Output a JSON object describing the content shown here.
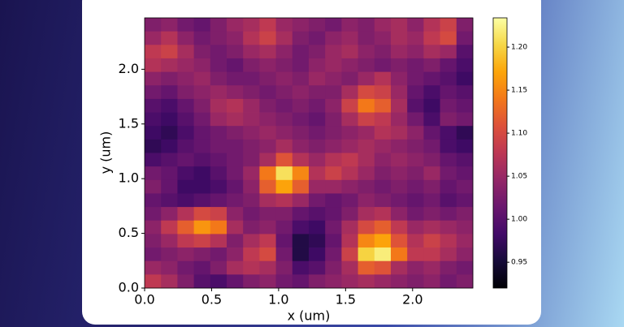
{
  "chart_data": {
    "type": "heatmap",
    "xlabel": "x (um)",
    "ylabel": "y (um)",
    "xlim": [
      0,
      2.45
    ],
    "ylim": [
      0,
      2.47
    ],
    "xticks": [
      {
        "value": 0,
        "label": "0.0"
      },
      0.5,
      {
        "value": 1,
        "label": "1.0"
      },
      1.5,
      {
        "value": 2,
        "label": "2.0"
      }
    ],
    "yticks": [
      {
        "value": 0,
        "label": "0.0"
      },
      0.5,
      {
        "value": 1,
        "label": "1.0"
      },
      1.5,
      {
        "value": 2,
        "label": "2.0"
      }
    ],
    "colormap": "inferno",
    "clim": [
      0.92,
      1.234
    ],
    "cticks": [
      0.95,
      {
        "value": 1,
        "label": "1.00"
      },
      1.05,
      {
        "value": 1.1,
        "label": "1.10"
      },
      1.15,
      {
        "value": 1.2,
        "label": "1.20"
      }
    ],
    "z": [
      [
        1.03,
        1.04,
        1.02,
        1.01,
        1.03,
        1.05,
        1.06,
        1.08,
        1.05,
        1.04,
        1.03,
        1.02,
        1.04,
        1.03,
        1.05,
        1.06,
        1.04,
        1.07,
        1.09,
        1.03
      ],
      [
        1.05,
        1.07,
        1.04,
        1.02,
        1.03,
        1.04,
        1.07,
        1.09,
        1.06,
        1.03,
        1.02,
        1.04,
        1.05,
        1.03,
        1.04,
        1.06,
        1.05,
        1.08,
        1.1,
        1.02
      ],
      [
        1.08,
        1.09,
        1.06,
        1.03,
        1.02,
        1.03,
        1.05,
        1.06,
        1.04,
        1.02,
        1.03,
        1.05,
        1.06,
        1.04,
        1.03,
        1.05,
        1.04,
        1.06,
        1.05,
        1.0
      ],
      [
        1.07,
        1.06,
        1.05,
        1.04,
        1.02,
        1.01,
        1.03,
        1.04,
        1.03,
        1.02,
        1.04,
        1.05,
        1.04,
        1.03,
        1.02,
        1.03,
        1.02,
        1.03,
        1.01,
        0.99
      ],
      [
        1.04,
        1.03,
        1.04,
        1.05,
        1.03,
        1.02,
        1.02,
        1.03,
        1.04,
        1.03,
        1.05,
        1.04,
        1.03,
        1.05,
        1.07,
        1.04,
        1.02,
        1.01,
        1.0,
        0.98
      ],
      [
        1.02,
        1.01,
        1.03,
        1.04,
        1.05,
        1.04,
        1.03,
        1.02,
        1.03,
        1.04,
        1.03,
        1.03,
        1.06,
        1.1,
        1.09,
        1.05,
        1.01,
        0.99,
        1.01,
        1.0
      ],
      [
        1.0,
        0.99,
        1.01,
        1.03,
        1.06,
        1.07,
        1.05,
        1.03,
        1.02,
        1.03,
        1.02,
        1.04,
        1.09,
        1.14,
        1.12,
        1.06,
        1.0,
        0.98,
        1.02,
        1.01
      ],
      [
        0.99,
        0.98,
        1.0,
        1.02,
        1.05,
        1.06,
        1.05,
        1.04,
        1.03,
        1.02,
        1.01,
        1.03,
        1.06,
        1.09,
        1.08,
        1.05,
        1.02,
        0.99,
        1.03,
        1.02
      ],
      [
        0.98,
        0.97,
        0.99,
        1.01,
        1.02,
        1.03,
        1.04,
        1.05,
        1.04,
        1.03,
        1.02,
        1.03,
        1.04,
        1.05,
        1.07,
        1.06,
        1.04,
        1.01,
        0.99,
        0.97
      ],
      [
        0.97,
        0.98,
        1.0,
        1.01,
        1.02,
        1.02,
        1.03,
        1.04,
        1.06,
        1.04,
        1.03,
        1.04,
        1.05,
        1.06,
        1.05,
        1.04,
        1.03,
        1.02,
        0.99,
        0.98
      ],
      [
        0.99,
        1.0,
        1.01,
        1.0,
        1.01,
        1.02,
        1.03,
        1.06,
        1.11,
        1.07,
        1.05,
        1.07,
        1.08,
        1.06,
        1.04,
        1.05,
        1.04,
        1.03,
        1.01,
        1.0
      ],
      [
        1.02,
        1.01,
        0.99,
        0.98,
        1.0,
        1.02,
        1.05,
        1.14,
        1.21,
        1.15,
        1.07,
        1.09,
        1.07,
        1.05,
        1.03,
        1.04,
        1.03,
        1.05,
        1.02,
        1.01
      ],
      [
        1.03,
        1.01,
        0.98,
        0.98,
        0.99,
        1.01,
        1.04,
        1.12,
        1.17,
        1.12,
        1.05,
        1.05,
        1.04,
        1.03,
        1.02,
        1.03,
        1.02,
        1.03,
        1.01,
        1.02
      ],
      [
        1.01,
        1.0,
        0.99,
        1.0,
        1.01,
        1.02,
        1.03,
        1.06,
        1.07,
        1.05,
        1.02,
        1.01,
        1.02,
        1.04,
        1.03,
        1.02,
        1.01,
        1.02,
        1.0,
        1.01
      ],
      [
        1.02,
        1.04,
        1.07,
        1.1,
        1.09,
        1.04,
        1.02,
        1.03,
        1.03,
        1.01,
        1.0,
        1.01,
        1.03,
        1.06,
        1.07,
        1.04,
        1.02,
        1.03,
        1.02,
        1.03
      ],
      [
        1.04,
        1.08,
        1.12,
        1.16,
        1.14,
        1.06,
        1.03,
        1.04,
        1.02,
        0.99,
        0.98,
        1.02,
        1.06,
        1.1,
        1.12,
        1.08,
        1.05,
        1.06,
        1.05,
        1.04
      ],
      [
        1.03,
        1.05,
        1.08,
        1.09,
        1.07,
        1.03,
        1.06,
        1.08,
        1.01,
        0.96,
        0.97,
        1.01,
        1.07,
        1.15,
        1.17,
        1.11,
        1.07,
        1.09,
        1.07,
        1.05
      ],
      [
        1.02,
        1.03,
        1.04,
        1.03,
        1.02,
        1.04,
        1.08,
        1.1,
        1.02,
        0.96,
        0.98,
        1.02,
        1.09,
        1.2,
        1.22,
        1.14,
        1.08,
        1.08,
        1.06,
        1.04
      ],
      [
        1.05,
        1.04,
        1.02,
        1.01,
        1.03,
        1.06,
        1.07,
        1.06,
        1.03,
        0.99,
        1.0,
        1.03,
        1.06,
        1.12,
        1.11,
        1.06,
        1.04,
        1.05,
        1.03,
        1.02
      ],
      [
        1.08,
        1.06,
        1.03,
        1.0,
        0.99,
        1.01,
        1.03,
        1.04,
        1.02,
        1.01,
        1.03,
        1.04,
        1.05,
        1.06,
        1.05,
        1.04,
        1.03,
        1.04,
        1.02,
        1.03
      ]
    ]
  }
}
